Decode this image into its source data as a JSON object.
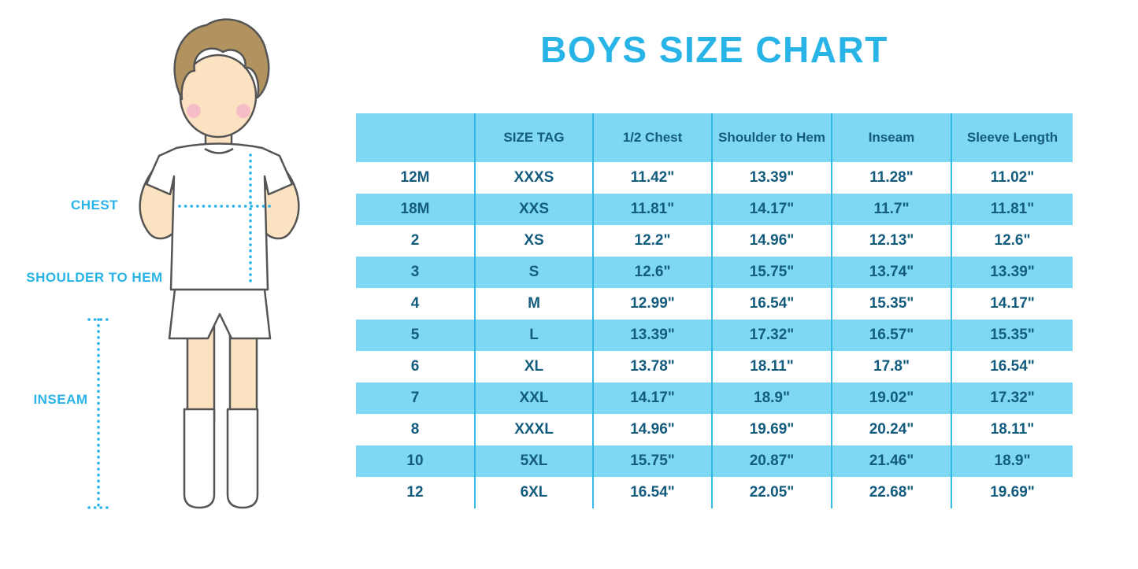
{
  "title": "BOYS SIZE CHART",
  "colors": {
    "accent_blue": "#29B4E8",
    "table_stripe": "#7ED7F3",
    "table_text": "#135C7D",
    "column_divider": "#35B9E6"
  },
  "diagram": {
    "chest_label": "CHEST",
    "shoulder_label": "SHOULDER TO HEM",
    "inseam_label": "INSEAM"
  },
  "chart_data": {
    "type": "table",
    "title": "BOYS SIZE CHART",
    "columns": [
      "",
      "SIZE TAG",
      "1/2 Chest",
      "Shoulder to Hem",
      "Inseam",
      "Sleeve Length"
    ],
    "rows": [
      [
        "12M",
        "XXXS",
        "11.42\"",
        "13.39\"",
        "11.28\"",
        "11.02\""
      ],
      [
        "18M",
        "XXS",
        "11.81\"",
        "14.17\"",
        "11.7\"",
        "11.81\""
      ],
      [
        "2",
        "XS",
        "12.2\"",
        "14.96\"",
        "12.13\"",
        "12.6\""
      ],
      [
        "3",
        "S",
        "12.6\"",
        "15.75\"",
        "13.74\"",
        "13.39\""
      ],
      [
        "4",
        "M",
        "12.99\"",
        "16.54\"",
        "15.35\"",
        "14.17\""
      ],
      [
        "5",
        "L",
        "13.39\"",
        "17.32\"",
        "16.57\"",
        "15.35\""
      ],
      [
        "6",
        "XL",
        "13.78\"",
        "18.11\"",
        "17.8\"",
        "16.54\""
      ],
      [
        "7",
        "XXL",
        "14.17\"",
        "18.9\"",
        "19.02\"",
        "17.32\""
      ],
      [
        "8",
        "XXXL",
        "14.96\"",
        "19.69\"",
        "20.24\"",
        "18.11\""
      ],
      [
        "10",
        "5XL",
        "15.75\"",
        "20.87\"",
        "21.46\"",
        "18.9\""
      ],
      [
        "12",
        "6XL",
        "16.54\"",
        "22.05\"",
        "22.68\"",
        "19.69\""
      ]
    ]
  }
}
